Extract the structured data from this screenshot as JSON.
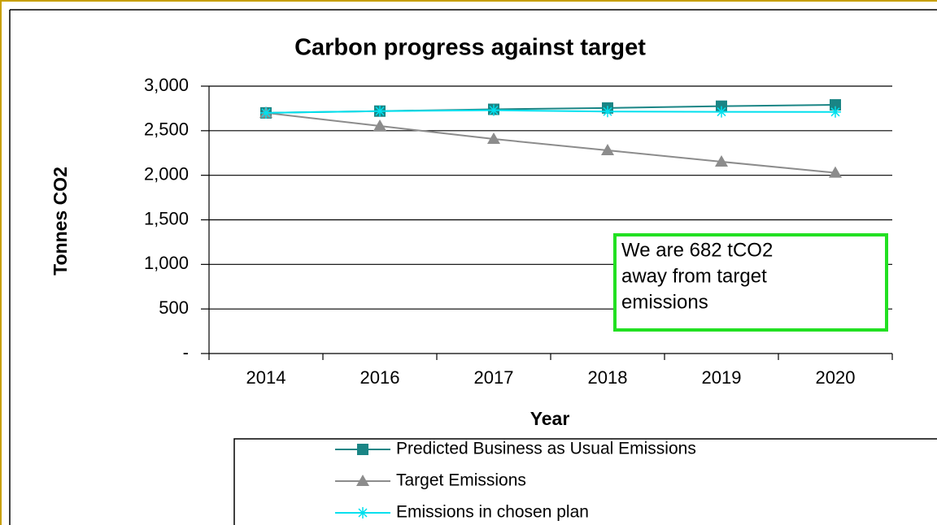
{
  "chart_data": {
    "type": "line",
    "title": "Carbon progress against target",
    "x_label": "Year",
    "y_label": "Tonnes CO2",
    "categories": [
      "2014",
      "2016",
      "2017",
      "2018",
      "2019",
      "2020"
    ],
    "series": [
      {
        "name": "Predicted Business as Usual Emissions",
        "color": "#1a8585",
        "marker": "square",
        "values": [
          2700,
          2720,
          2740,
          2755,
          2775,
          2790
        ]
      },
      {
        "name": "Target Emissions",
        "color": "#8c8c8c",
        "marker": "triangle",
        "values": [
          2700,
          2553,
          2407,
          2280,
          2152,
          2028
        ]
      },
      {
        "name": "Emissions in chosen plan",
        "color": "#00e0ee",
        "marker": "asterisk",
        "values": [
          2700,
          2720,
          2730,
          2715,
          2712,
          2710
        ]
      }
    ],
    "ylim": [
      0,
      3000
    ],
    "yticks": [
      {
        "value": 0,
        "label": "-"
      },
      500,
      {
        "value": 1000,
        "label": "1,000"
      },
      {
        "value": 1500,
        "label": "1,500"
      },
      {
        "value": 2000,
        "label": "2,000"
      },
      {
        "value": 2500,
        "label": "2,500"
      },
      {
        "value": 3000,
        "label": "3,000"
      }
    ],
    "grid": true,
    "annotation": [
      "We are 682 tCO2",
      "away from target",
      "emissions"
    ],
    "annotation_color": "#22e022",
    "legend": "bottom"
  }
}
